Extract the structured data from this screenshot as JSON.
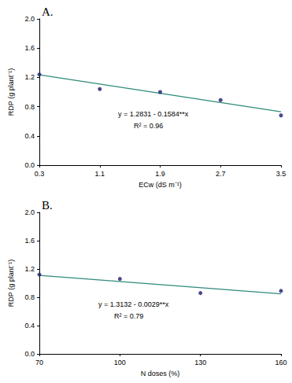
{
  "chart_data": [
    {
      "type": "scatter",
      "title": "A.",
      "x_label": "ECw (dS m⁻¹)",
      "y_label": "RDP (g plant⁻¹)",
      "x": [
        0.3,
        1.1,
        1.9,
        2.7,
        3.5
      ],
      "values": [
        1.24,
        1.04,
        1.0,
        0.89,
        0.68
      ],
      "color": "#1a1a6e",
      "marker": "circle",
      "fit": {
        "x": [
          0.3,
          3.5
        ],
        "values": [
          1.236,
          0.729
        ],
        "color": "#2e8b7a",
        "line_style": "solid"
      },
      "annotations": [
        "y = 1.2831 - 0.1584**x",
        "R² = 0.96"
      ],
      "xlim": [
        0.3,
        3.5
      ],
      "xticks": [
        0.3,
        1.1,
        1.9,
        2.7,
        3.5
      ],
      "ylim": [
        0,
        2
      ],
      "yticks": [
        {
          "value": 0,
          "label": "0.0"
        },
        {
          "value": 0.4,
          "label": "0.4"
        },
        {
          "value": 0.8,
          "label": "0.8"
        },
        {
          "value": 1.2,
          "label": "1.2"
        },
        {
          "value": 1.6,
          "label": "1.6"
        },
        {
          "value": 2,
          "label": "2.0"
        }
      ],
      "grid": false
    },
    {
      "type": "scatter",
      "title": "B.",
      "x_label": "N doses (%)",
      "y_label": "RDP (g plant⁻¹)",
      "x": [
        70,
        100,
        130,
        160
      ],
      "values": [
        1.12,
        1.06,
        0.86,
        0.89
      ],
      "color": "#1a1a6e",
      "marker": "circle",
      "fit": {
        "x": [
          70,
          160
        ],
        "values": [
          1.11,
          0.849
        ],
        "color": "#2e8b7a",
        "line_style": "solid"
      },
      "annotations": [
        "y = 1.3132 - 0.0029**x",
        "R² = 0.79"
      ],
      "xlim": [
        70,
        160
      ],
      "xticks": [
        70,
        100,
        130,
        160
      ],
      "ylim": [
        0,
        2
      ],
      "yticks": [
        {
          "value": 0,
          "label": "0.0"
        },
        {
          "value": 0.4,
          "label": "0.4"
        },
        {
          "value": 0.8,
          "label": "0.8"
        },
        {
          "value": 1.2,
          "label": "1.2"
        },
        {
          "value": 1.6,
          "label": "1.6"
        },
        {
          "value": 2,
          "label": "2.0"
        }
      ],
      "grid": false
    }
  ]
}
